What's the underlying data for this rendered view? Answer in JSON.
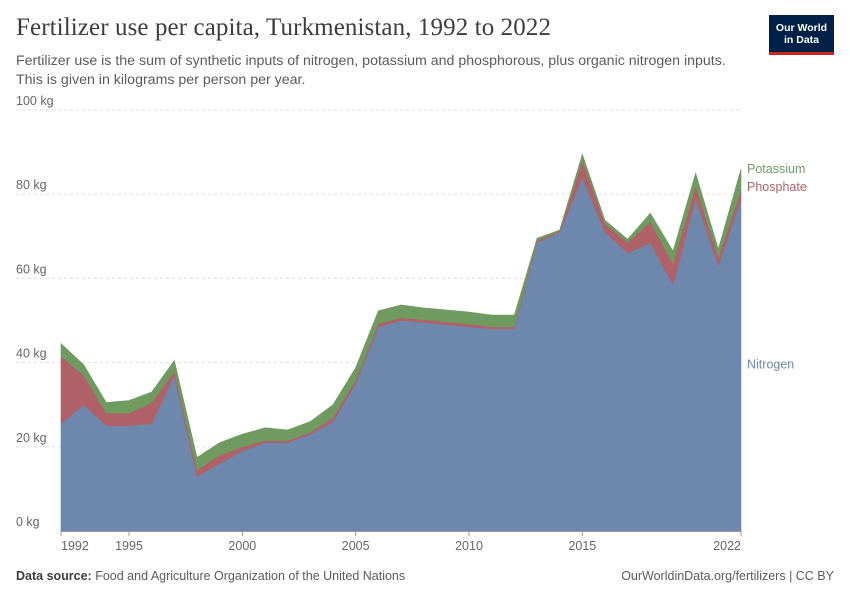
{
  "header": {
    "title": "Fertilizer use per capita, Turkmenistan, 1992 to 2022",
    "subtitle": "Fertilizer use is the sum of synthetic inputs of nitrogen, potassium and phosphorous, plus organic nitrogen inputs. This is given in kilograms per person per year."
  },
  "logo": {
    "line1": "Our World",
    "line2": "in Data",
    "bg_color": "#002147",
    "accent_color": "#ce261e"
  },
  "footer": {
    "source_label": "Data source:",
    "source_text": "Food and Agriculture Organization of the United Nations",
    "link_text": "OurWorldinData.org/fertilizers | CC BY"
  },
  "chart_data": {
    "type": "area",
    "stacked": true,
    "title": "Fertilizer use per capita, Turkmenistan, 1992 to 2022",
    "ylabel": "",
    "xlabel": "",
    "ylim": [
      0,
      100
    ],
    "xlim": [
      1992,
      2022
    ],
    "y_ticks": [
      0,
      20,
      40,
      60,
      80,
      100
    ],
    "y_tick_labels": [
      "0 kg",
      "20 kg",
      "40 kg",
      "60 kg",
      "80 kg",
      "100 kg"
    ],
    "x_ticks": [
      1992,
      1995,
      2000,
      2005,
      2010,
      2015,
      2022
    ],
    "x_tick_labels": [
      "1992",
      "1995",
      "2000",
      "2005",
      "2010",
      "2015",
      "2022"
    ],
    "grid": "horizontal-dashed",
    "legend": "right-of-plot",
    "x": [
      1992,
      1993,
      1994,
      1995,
      1996,
      1997,
      1998,
      1999,
      2000,
      2001,
      2002,
      2003,
      2004,
      2005,
      2006,
      2007,
      2008,
      2009,
      2010,
      2011,
      2012,
      2013,
      2014,
      2015,
      2016,
      2017,
      2018,
      2019,
      2020,
      2021,
      2022
    ],
    "series": [
      {
        "name": "Nitrogen",
        "color": "#6d87ad",
        "values": [
          25.5,
          30,
          25,
          25,
          25.5,
          37,
          13,
          16,
          19,
          21,
          21,
          23,
          26,
          35,
          48.5,
          50,
          49.5,
          49,
          48.5,
          48,
          48,
          68.5,
          71,
          84,
          71,
          66,
          68.5,
          58.5,
          79,
          63,
          79
        ]
      },
      {
        "name": "Phosphate",
        "color": "#b06167",
        "values": [
          16,
          7,
          3,
          3,
          5,
          1,
          1.5,
          2,
          1,
          0.5,
          0.5,
          0.5,
          1,
          0.8,
          0.8,
          0.7,
          0.7,
          0.7,
          0.7,
          0.5,
          0.5,
          0.5,
          0.3,
          4,
          2,
          2.5,
          5,
          5,
          3,
          2,
          2
        ]
      },
      {
        "name": "Potassium",
        "color": "#6f9a60",
        "values": [
          3,
          2.5,
          2.5,
          3,
          2.5,
          2.5,
          3,
          3,
          3,
          3,
          2.5,
          2.5,
          3,
          3,
          3,
          3,
          2.8,
          2.8,
          2.8,
          2.8,
          2.8,
          0.5,
          0.2,
          1.5,
          0.8,
          0.8,
          2,
          3,
          3,
          2,
          5
        ]
      }
    ]
  }
}
